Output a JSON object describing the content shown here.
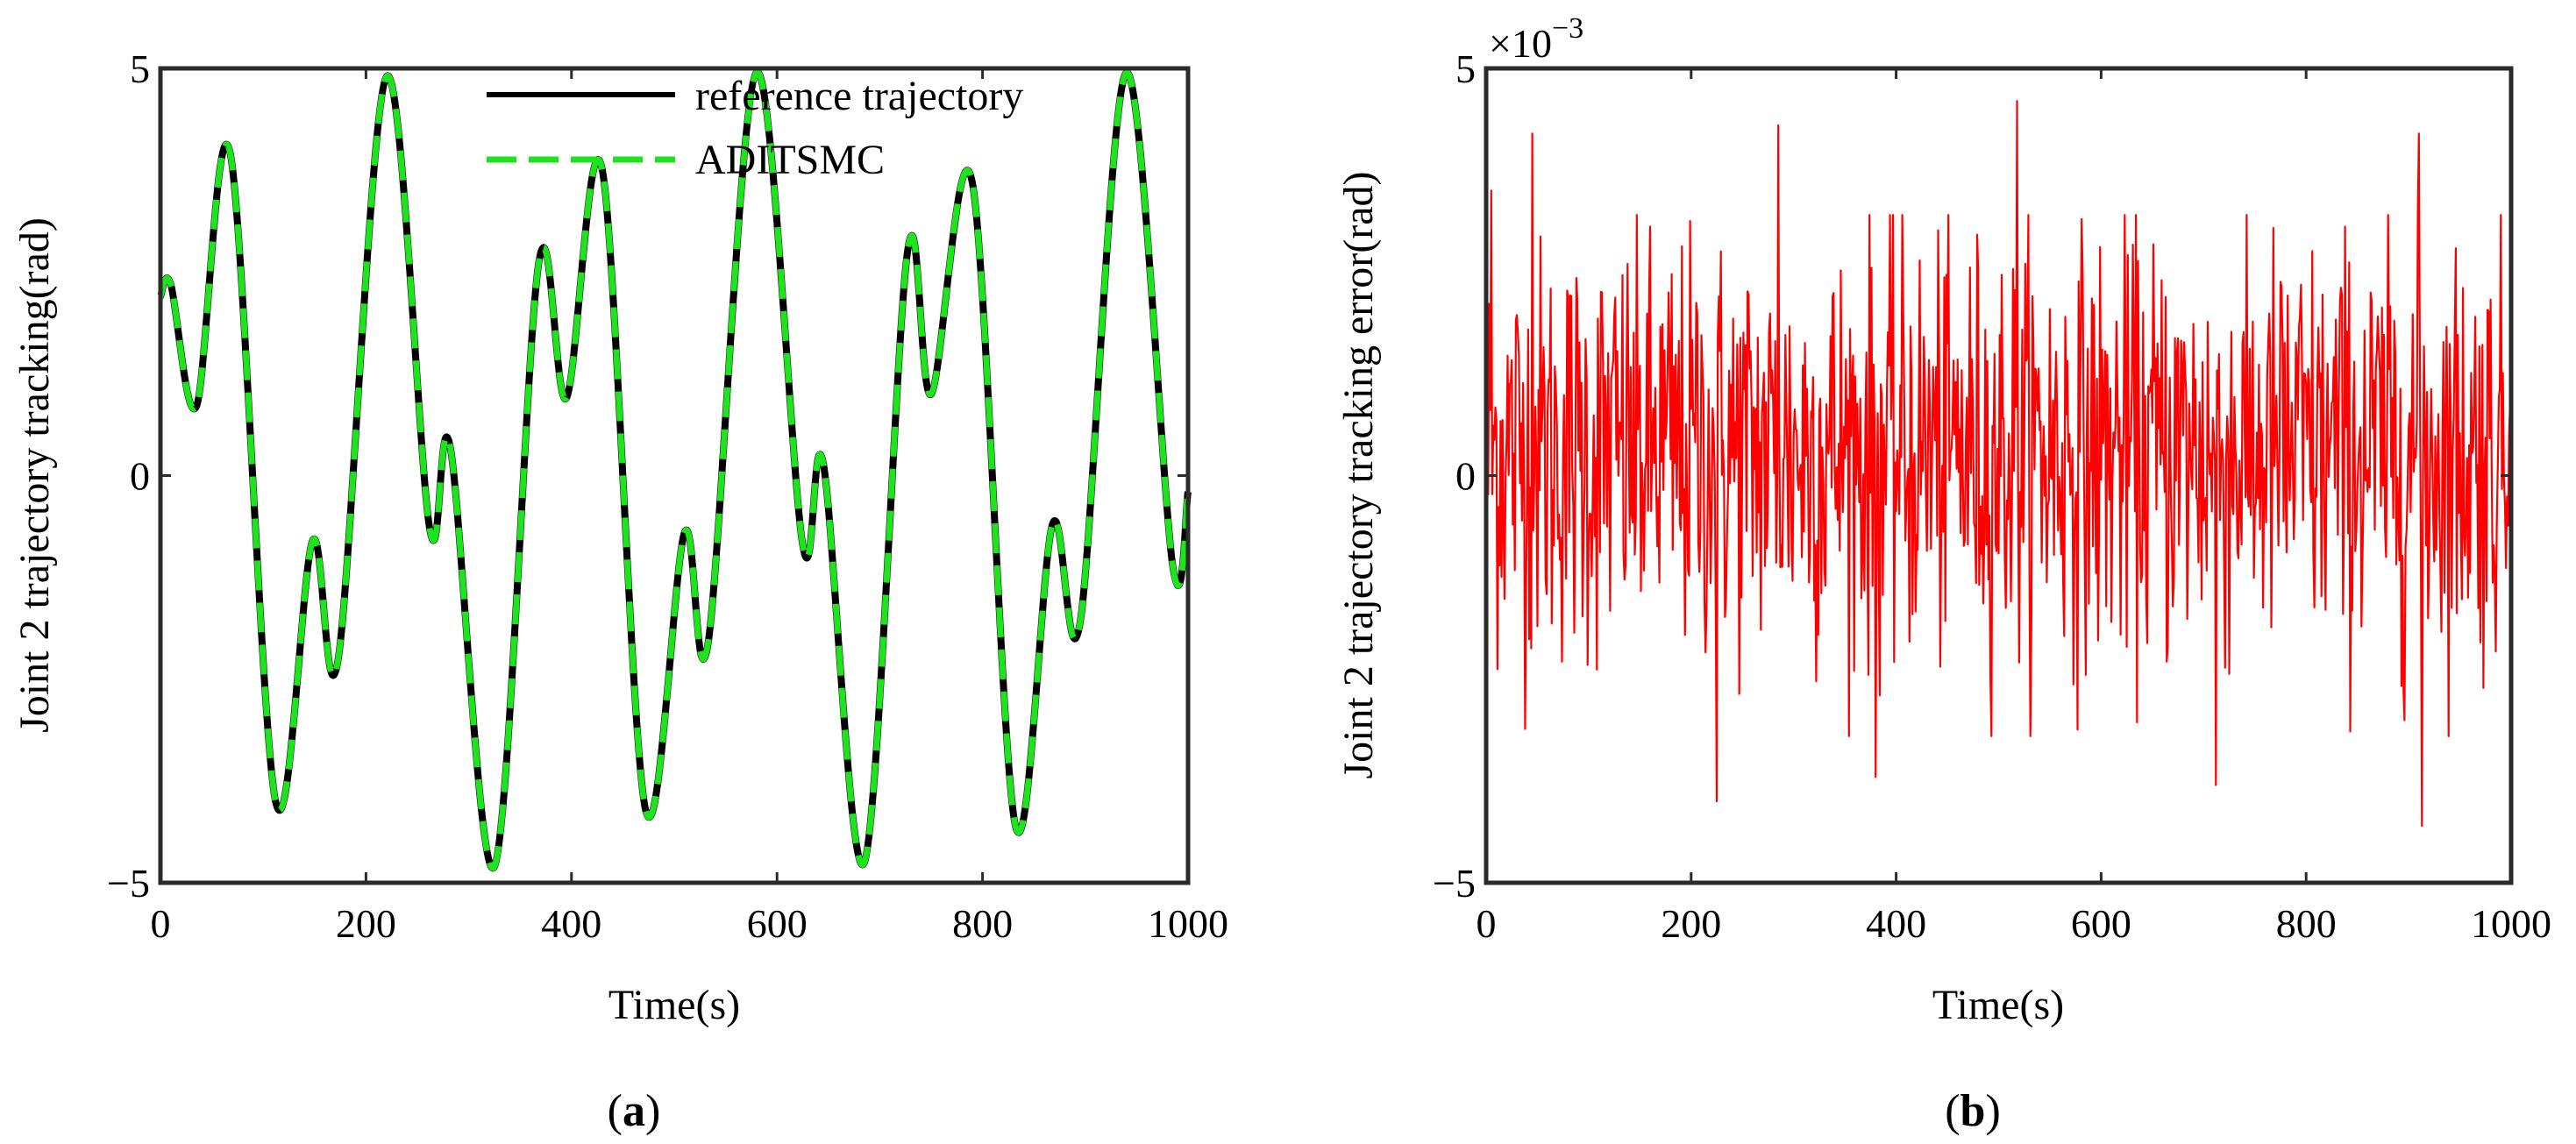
{
  "chart_data": [
    {
      "type": "line",
      "panel_label": "a",
      "xlabel": "Time(s)",
      "ylabel": "Joint 2 trajectory tracking(rad)",
      "xlim": [
        0,
        1000
      ],
      "ylim": [
        -5,
        5
      ],
      "xticks": [
        "0",
        "200",
        "400",
        "600",
        "800",
        "1000"
      ],
      "yticks": [
        "−5",
        "0",
        "5"
      ],
      "grid": false,
      "legend_position": "top-center",
      "series": [
        {
          "name": "reference trajectory",
          "color": "#000000",
          "style": "solid",
          "x": [
            0,
            10,
            35,
            68,
            112,
            148,
            173,
            220,
            262,
            282,
            325,
            368,
            395,
            430,
            472,
            510,
            533,
            580,
            625,
            645,
            685,
            727,
            750,
            790,
            832,
            868,
            895,
            940,
            985,
            1000
          ],
          "y": [
            2.2,
            2.35,
            0.85,
            3.95,
            -4.0,
            -0.8,
            -2.25,
            4.9,
            -0.65,
            0.35,
            -4.8,
            2.6,
            0.95,
            3.75,
            -4.1,
            -0.7,
            -2.05,
            4.95,
            -0.85,
            0.15,
            -4.75,
            2.75,
            1.0,
            3.6,
            -4.3,
            -0.6,
            -1.8,
            4.95,
            -1.1,
            -0.2
          ]
        },
        {
          "name": "ADITSMC",
          "color": "#1ee31e",
          "style": "dashed",
          "x": [
            0,
            10,
            35,
            68,
            112,
            148,
            173,
            220,
            262,
            282,
            325,
            368,
            395,
            430,
            472,
            510,
            533,
            580,
            625,
            645,
            685,
            727,
            750,
            790,
            832,
            868,
            895,
            940,
            985,
            1000
          ],
          "y": [
            2.2,
            2.35,
            0.85,
            3.95,
            -4.0,
            -0.8,
            -2.25,
            4.9,
            -0.65,
            0.35,
            -4.8,
            2.6,
            0.95,
            3.75,
            -4.1,
            -0.7,
            -2.05,
            4.95,
            -0.85,
            0.15,
            -4.75,
            2.75,
            1.0,
            3.6,
            -4.3,
            -0.6,
            -1.8,
            4.95,
            -1.1,
            -0.2
          ]
        }
      ]
    },
    {
      "type": "line",
      "panel_label": "b",
      "xlabel": "Time(s)",
      "ylabel": "Joint 2 trajectory tracking error(rad)",
      "xlim": [
        0,
        1000
      ],
      "ylim": [
        -5,
        5
      ],
      "y_scale_exponent": "×10",
      "y_scale_power": "−3",
      "xticks": [
        "0",
        "200",
        "400",
        "600",
        "800",
        "1000"
      ],
      "yticks": [
        "−5",
        "0",
        "5"
      ],
      "grid": false,
      "series": [
        {
          "color": "#ff0000",
          "style": "solid",
          "noise": {
            "mean": 0.3,
            "std": 1.3,
            "min": -4.3,
            "max": 4.6,
            "samples": 1000
          },
          "spikes": [
            {
              "x": 5,
              "y": 3.5
            },
            {
              "x": 45,
              "y": 4.2
            },
            {
              "x": 225,
              "y": -4.0
            },
            {
              "x": 285,
              "y": 4.3
            },
            {
              "x": 380,
              "y": -3.7
            },
            {
              "x": 518,
              "y": 4.6
            },
            {
              "x": 712,
              "y": -3.8
            },
            {
              "x": 910,
              "y": 4.2
            },
            {
              "x": 913,
              "y": -4.3
            }
          ]
        }
      ]
    }
  ]
}
